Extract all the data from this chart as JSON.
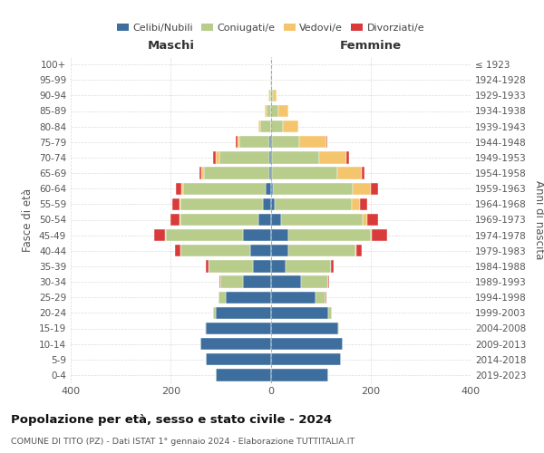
{
  "age_groups": [
    "0-4",
    "5-9",
    "10-14",
    "15-19",
    "20-24",
    "25-29",
    "30-34",
    "35-39",
    "40-44",
    "45-49",
    "50-54",
    "55-59",
    "60-64",
    "65-69",
    "70-74",
    "75-79",
    "80-84",
    "85-89",
    "90-94",
    "95-99",
    "100+"
  ],
  "birth_years": [
    "2019-2023",
    "2014-2018",
    "2009-2013",
    "2004-2008",
    "1999-2003",
    "1994-1998",
    "1989-1993",
    "1984-1988",
    "1979-1983",
    "1974-1978",
    "1969-1973",
    "1964-1968",
    "1959-1963",
    "1954-1958",
    "1949-1953",
    "1944-1948",
    "1939-1943",
    "1934-1938",
    "1929-1933",
    "1924-1928",
    "≤ 1923"
  ],
  "maschi": {
    "celibi": [
      110,
      130,
      140,
      130,
      110,
      90,
      55,
      35,
      40,
      55,
      25,
      15,
      10,
      3,
      2,
      2,
      0,
      0,
      0,
      0,
      0
    ],
    "coniugati": [
      0,
      0,
      0,
      2,
      5,
      15,
      45,
      90,
      140,
      155,
      155,
      165,
      165,
      130,
      100,
      60,
      20,
      8,
      3,
      1,
      0
    ],
    "vedovi": [
      0,
      0,
      0,
      0,
      0,
      0,
      0,
      0,
      1,
      1,
      2,
      2,
      4,
      5,
      8,
      5,
      5,
      3,
      1,
      0,
      0
    ],
    "divorziati": [
      0,
      0,
      0,
      0,
      0,
      0,
      2,
      5,
      10,
      22,
      18,
      15,
      10,
      5,
      5,
      2,
      0,
      0,
      0,
      0,
      0
    ]
  },
  "femmine": {
    "nubili": [
      115,
      140,
      145,
      135,
      115,
      90,
      60,
      30,
      35,
      35,
      20,
      8,
      5,
      3,
      2,
      2,
      0,
      0,
      0,
      0,
      0
    ],
    "coniugate": [
      0,
      0,
      0,
      2,
      8,
      20,
      55,
      90,
      135,
      165,
      165,
      155,
      160,
      130,
      95,
      55,
      25,
      15,
      4,
      1,
      0
    ],
    "vedove": [
      0,
      0,
      0,
      0,
      0,
      0,
      0,
      1,
      2,
      3,
      8,
      15,
      35,
      50,
      55,
      55,
      30,
      20,
      8,
      2,
      0
    ],
    "divorziate": [
      0,
      0,
      0,
      0,
      0,
      2,
      2,
      5,
      10,
      30,
      22,
      15,
      15,
      5,
      5,
      2,
      1,
      0,
      0,
      0,
      0
    ]
  },
  "colors": {
    "celibi": "#3d6e9e",
    "coniugati": "#b8cc8c",
    "vedovi": "#f5c56e",
    "divorziati": "#d93b3b"
  },
  "title": "Popolazione per età, sesso e stato civile - 2024",
  "subtitle": "COMUNE DI TITO (PZ) - Dati ISTAT 1° gennaio 2024 - Elaborazione TUTTITALIA.IT",
  "ylabel_left": "Fasce di età",
  "ylabel_right": "Anni di nascita",
  "xlabel_left": "Maschi",
  "xlabel_right": "Femmine",
  "xlim": 400,
  "background_color": "#ffffff",
  "grid_color": "#cccccc"
}
